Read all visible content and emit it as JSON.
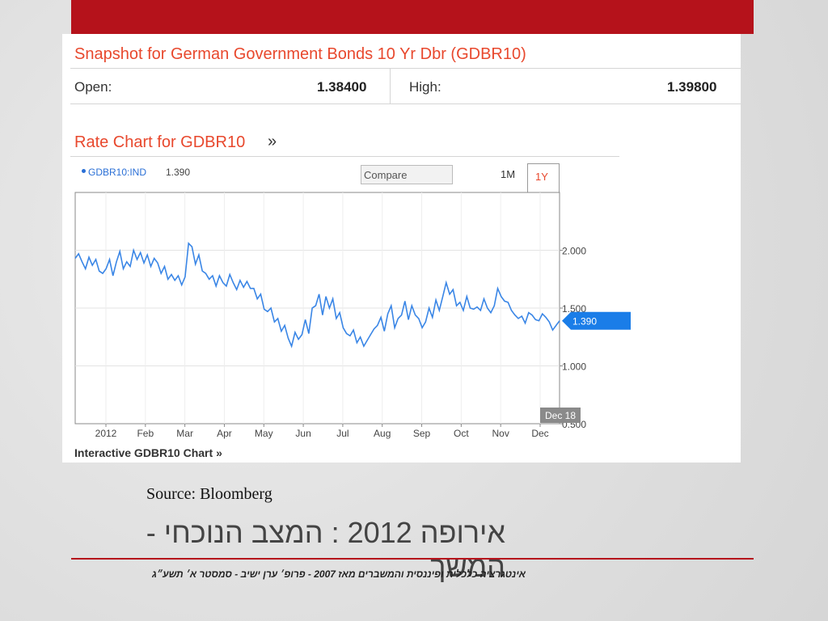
{
  "slide": {
    "source": "Source: Bloomberg",
    "title": "אירופה 2012 : המצב הנוכחי - המשך",
    "footer": "אינטגרציה כלכלית ופיננסית והמשברים מאז 2007 - פרופ׳ ערן ישיב - סמסטר א׳ תשע״ג",
    "accent_color": "#b5121b"
  },
  "snapshot": {
    "title": "Snapshot for German Government Bonds 10 Yr Dbr (GDBR10)",
    "open_label": "Open:",
    "open_value": "1.38400",
    "high_label": "High:",
    "high_value": "1.39800"
  },
  "rate_chart": {
    "title": "Rate Chart for GDBR10",
    "title_arrow": "»",
    "legend_symbol": "GDBR10:IND",
    "legend_value": "1.390",
    "compare_label": "Compare",
    "tabs": [
      "1M",
      "1Y"
    ],
    "active_tab": "1Y",
    "link_label": "Interactive GDBR10 Chart",
    "link_arrow": "»",
    "line_color": "#3a86e6",
    "label_color": "#1a7de8"
  },
  "chart_data": {
    "type": "line",
    "x_tick_labels": [
      "2012",
      "Feb",
      "Mar",
      "Apr",
      "May",
      "Jun",
      "Jul",
      "Aug",
      "Sep",
      "Oct",
      "Nov",
      "Dec"
    ],
    "y_tick_labels": [
      "2.000",
      "1.500",
      "1.000",
      "0.500"
    ],
    "ylim": [
      0.5,
      2.5
    ],
    "grid": true,
    "current_value_label": "1.390",
    "end_date_label": "Dec 18",
    "series": [
      {
        "values": [
          1.93,
          1.97,
          1.9,
          1.84,
          1.94,
          1.87,
          1.92,
          1.82,
          1.8,
          1.84,
          1.92,
          1.78,
          1.9,
          1.99,
          1.84,
          1.9,
          1.86,
          2.0,
          1.92,
          1.98,
          1.89,
          1.96,
          1.86,
          1.93,
          1.89,
          1.8,
          1.86,
          1.75,
          1.79,
          1.74,
          1.78,
          1.7,
          1.77,
          2.06,
          2.03,
          1.88,
          1.96,
          1.82,
          1.8,
          1.75,
          1.78,
          1.69,
          1.78,
          1.72,
          1.69,
          1.79,
          1.72,
          1.66,
          1.74,
          1.68,
          1.73,
          1.67,
          1.67,
          1.58,
          1.62,
          1.49,
          1.47,
          1.5,
          1.38,
          1.41,
          1.3,
          1.35,
          1.24,
          1.17,
          1.29,
          1.23,
          1.27,
          1.4,
          1.28,
          1.5,
          1.52,
          1.62,
          1.44,
          1.6,
          1.5,
          1.58,
          1.41,
          1.46,
          1.33,
          1.28,
          1.26,
          1.31,
          1.2,
          1.25,
          1.17,
          1.22,
          1.27,
          1.32,
          1.35,
          1.42,
          1.3,
          1.45,
          1.52,
          1.33,
          1.41,
          1.44,
          1.56,
          1.4,
          1.52,
          1.44,
          1.41,
          1.33,
          1.38,
          1.5,
          1.42,
          1.57,
          1.48,
          1.6,
          1.72,
          1.62,
          1.66,
          1.52,
          1.55,
          1.48,
          1.6,
          1.5,
          1.49,
          1.51,
          1.48,
          1.58,
          1.5,
          1.46,
          1.52,
          1.67,
          1.6,
          1.56,
          1.55,
          1.48,
          1.44,
          1.41,
          1.43,
          1.37,
          1.46,
          1.44,
          1.4,
          1.39,
          1.45,
          1.42,
          1.38,
          1.31,
          1.35,
          1.39
        ]
      }
    ]
  }
}
